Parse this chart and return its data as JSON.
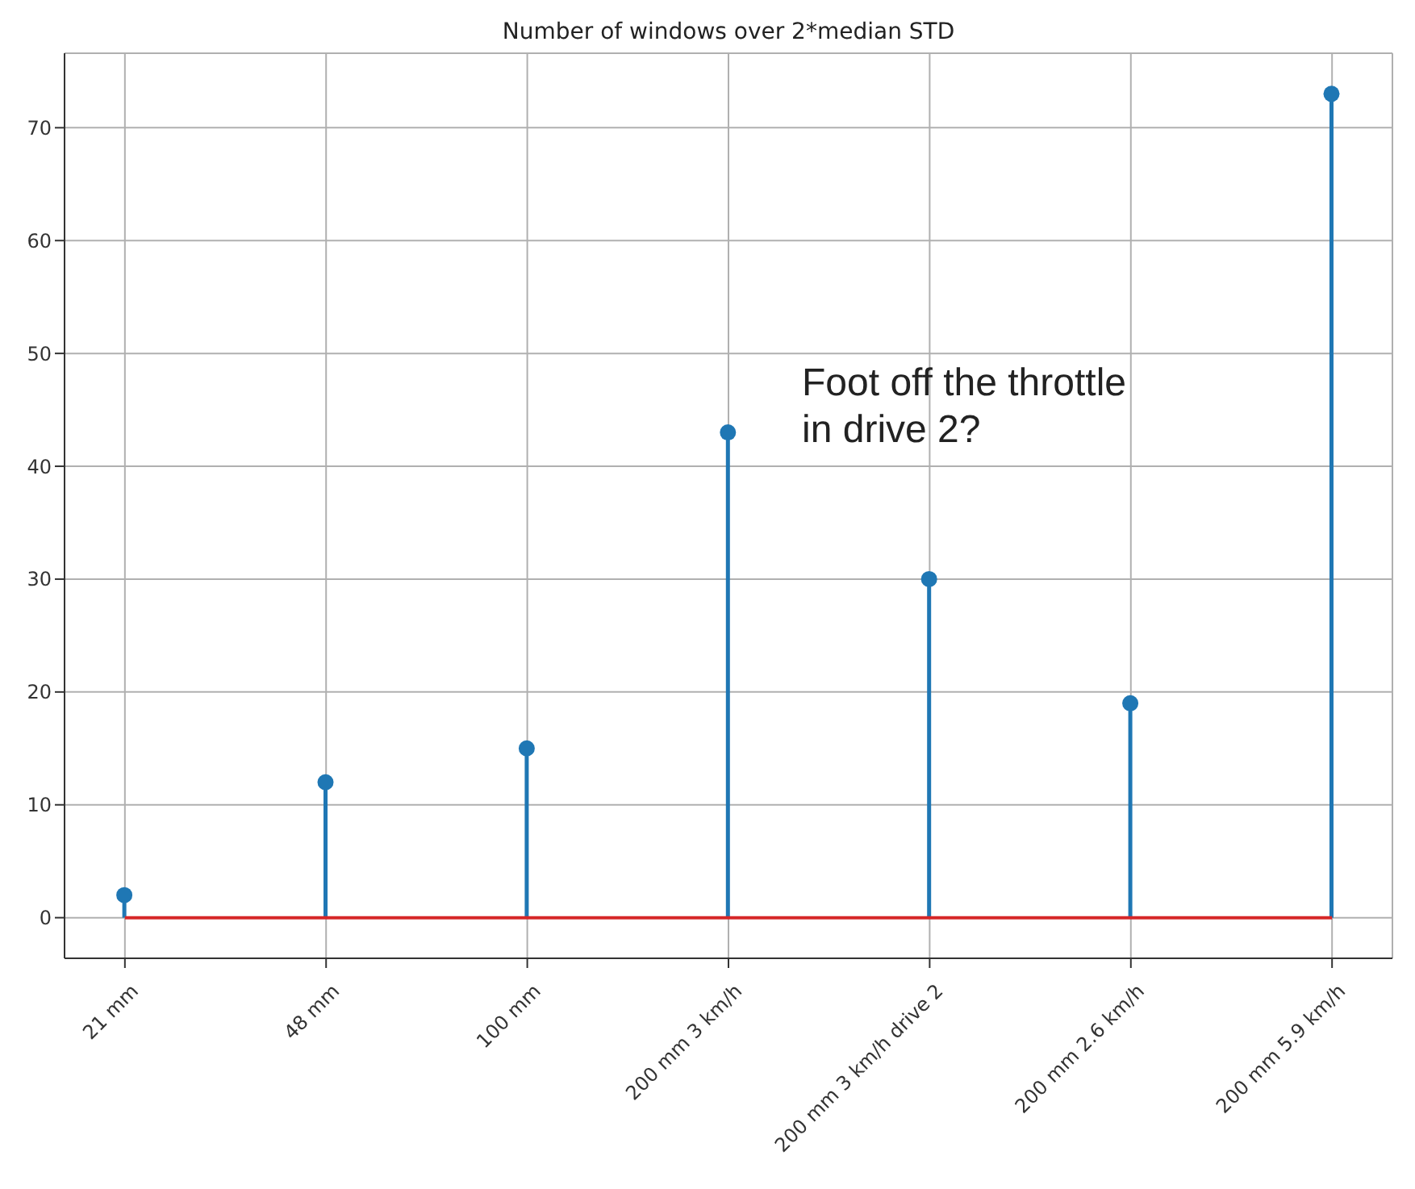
{
  "chart_data": {
    "type": "lollipop",
    "title": "Number of windows over 2*median STD",
    "categories": [
      "21 mm",
      "48 mm",
      "100 mm",
      "200 mm 3 km/h",
      "200 mm 3 km/h drive 2",
      "200 mm 2.6 km/h",
      "200 mm 5.9 km/h"
    ],
    "values": [
      2,
      12,
      15,
      43,
      30,
      19,
      73
    ],
    "color": "#1f77b4",
    "ylim": [
      -3.6,
      76.6
    ],
    "yticks": [
      0,
      10,
      20,
      30,
      40,
      50,
      60,
      70
    ],
    "grid": true,
    "marker": "circle",
    "ref_lines": [
      {
        "axis": "y",
        "value": 0,
        "color": "#d62728"
      }
    ],
    "annotations": [
      "Foot off the throttle in drive 2?"
    ]
  }
}
